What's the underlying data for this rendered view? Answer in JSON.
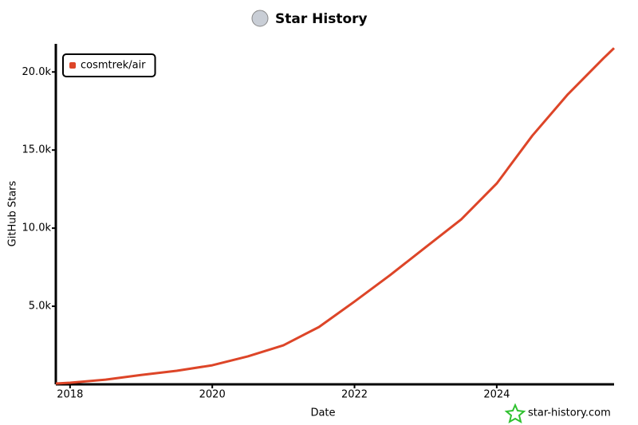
{
  "chart_data": {
    "type": "line",
    "title": "Star History",
    "x_label": "Date",
    "y_label": "GitHub Stars",
    "watermark": "star-history.com",
    "x": [
      2017.8,
      2018.0,
      2018.5,
      2019.0,
      2019.5,
      2020.0,
      2020.5,
      2021.0,
      2021.5,
      2022.0,
      2022.5,
      2023.0,
      2023.5,
      2024.0,
      2024.5,
      2025.0,
      2025.5,
      2025.65
    ],
    "series": [
      {
        "name": "cosmtrek/air",
        "color": "#dd4528",
        "values": [
          50,
          100,
          300,
          600,
          870,
          1220,
          1790,
          2500,
          3670,
          5300,
          6990,
          8780,
          10560,
          12860,
          15920,
          18570,
          20870,
          21530
        ]
      }
    ],
    "xlim": [
      2017.8,
      2025.65
    ],
    "xticks": [
      2018,
      2020,
      2022,
      2024
    ],
    "ylim": [
      0,
      21800
    ],
    "yticks": [
      {
        "value": 5000,
        "label": "5.0k"
      },
      {
        "value": 10000,
        "label": "10.0k"
      },
      {
        "value": 15000,
        "label": "15.0k"
      },
      {
        "value": 20000,
        "label": "20.0k"
      }
    ],
    "legend": "top-left"
  }
}
